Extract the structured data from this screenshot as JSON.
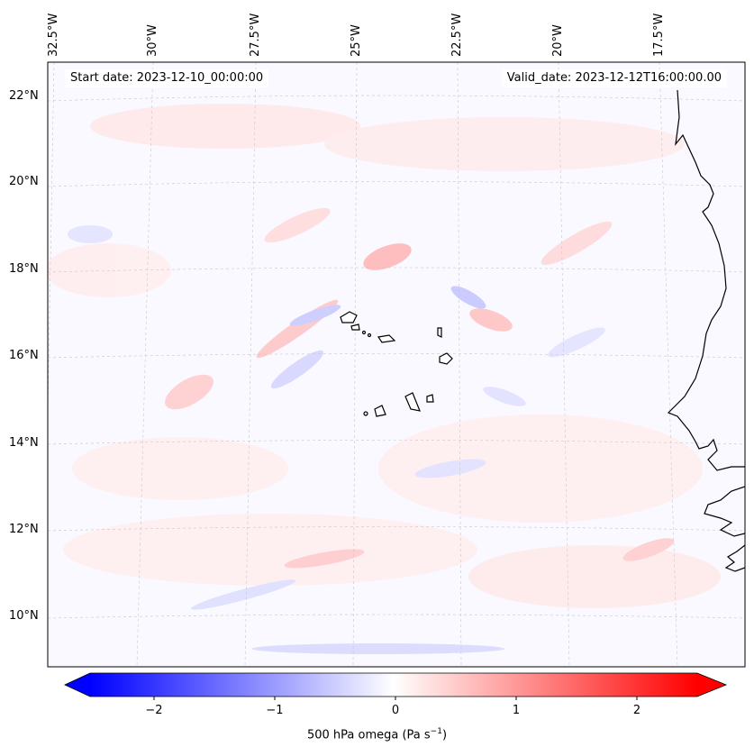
{
  "map": {
    "start_date": "Start date: 2023-12-10_00:00:00",
    "valid_date": "Valid_date: 2023-12-12T16:00:00.00",
    "lon_labels": [
      "32.5°W",
      "30°W",
      "27.5°W",
      "25°W",
      "22.5°W",
      "20°W",
      "17.5°W"
    ],
    "lat_labels": [
      "22°N",
      "20°N",
      "18°N",
      "16°N",
      "14°N",
      "12°N",
      "10°N"
    ],
    "colors": {
      "positive": "#ff0000",
      "negative": "#0000ff",
      "zero": "#ffffff",
      "coastline": "#000000",
      "gridline": "#b0b0b0"
    }
  },
  "colorbar": {
    "ticks": [
      "−2",
      "−1",
      "0",
      "1",
      "2"
    ],
    "label_main": "500 hPa omega (Pa s",
    "label_sup": "−1",
    "label_end": ")",
    "range": [
      -2.6,
      2.6
    ],
    "colormap": "bwr"
  }
}
